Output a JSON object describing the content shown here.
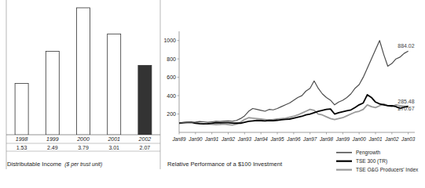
{
  "chart_data": [
    {
      "type": "bar",
      "title": "Distributable Income",
      "subtitle": "($ per trust unit)",
      "categories": [
        "1998",
        "1999",
        "2000",
        "2001",
        "2002"
      ],
      "values": [
        1.53,
        2.49,
        3.79,
        3.01,
        2.07
      ],
      "colors": [
        "#ffffff",
        "#ffffff",
        "#ffffff",
        "#ffffff",
        "#333333"
      ],
      "ylim": [
        0,
        4
      ],
      "data_labels": true,
      "tick_labels": "x",
      "grid": false
    },
    {
      "type": "line",
      "title": "Relative Performance of a $100 Investment",
      "x": [
        1989,
        1989.25,
        1989.5,
        1989.75,
        1990,
        1990.25,
        1990.5,
        1990.75,
        1991,
        1991.25,
        1991.5,
        1991.75,
        1992,
        1992.25,
        1992.5,
        1992.75,
        1993,
        1993.25,
        1993.5,
        1993.75,
        1994,
        1994.25,
        1994.5,
        1994.75,
        1995,
        1995.25,
        1995.5,
        1995.75,
        1996,
        1996.25,
        1996.5,
        1996.75,
        1997,
        1997.25,
        1997.5,
        1997.75,
        1998,
        1998.25,
        1998.5,
        1998.75,
        1999,
        1999.25,
        1999.5,
        1999.75,
        2000,
        2000.25,
        2000.5,
        2000.75,
        2001,
        2001.25,
        2001.5,
        2001.75,
        2002,
        2002.25,
        2002.5,
        2002.75,
        2003
      ],
      "series": [
        {
          "name": "Pengrowth",
          "color": "#4d4d4d",
          "line_style": "solid",
          "values": [
            100,
            105,
            110,
            108,
            112,
            118,
            115,
            110,
            115,
            120,
            118,
            122,
            125,
            120,
            130,
            150,
            180,
            230,
            260,
            250,
            240,
            230,
            250,
            245,
            260,
            280,
            300,
            320,
            350,
            380,
            400,
            450,
            480,
            560,
            480,
            420,
            380,
            350,
            300,
            330,
            350,
            380,
            420,
            480,
            520,
            600,
            700,
            800,
            900,
            1000,
            850,
            720,
            750,
            800,
            820,
            860,
            884.02
          ]
        },
        {
          "name": "TSE 300 (TR)",
          "color": "#000000",
          "line_style": "solid",
          "values": [
            100,
            105,
            108,
            110,
            100,
            95,
            92,
            95,
            100,
            105,
            103,
            105,
            105,
            102,
            100,
            100,
            110,
            120,
            125,
            130,
            128,
            125,
            130,
            128,
            132,
            138,
            142,
            145,
            155,
            165,
            175,
            190,
            200,
            215,
            230,
            240,
            250,
            255,
            200,
            215,
            225,
            235,
            245,
            270,
            300,
            320,
            410,
            380,
            330,
            310,
            300,
            290,
            290,
            280,
            260,
            275,
            285.48
          ]
        },
        {
          "name": "TSE O&G Producers' Index",
          "color": "#9a9a9a",
          "line_style": "solid",
          "values": [
            100,
            105,
            110,
            108,
            105,
            100,
            95,
            90,
            88,
            85,
            87,
            90,
            85,
            80,
            90,
            110,
            140,
            160,
            155,
            150,
            145,
            140,
            135,
            140,
            145,
            150,
            155,
            165,
            175,
            190,
            210,
            230,
            250,
            240,
            200,
            190,
            170,
            150,
            140,
            150,
            160,
            180,
            200,
            220,
            230,
            250,
            300,
            280,
            270,
            290,
            310,
            290,
            280,
            300,
            290,
            285,
            270.67
          ]
        }
      ],
      "xlim": [
        1989,
        2003.4
      ],
      "xticks": [
        {
          "value": 1989,
          "label": "Jan89"
        },
        {
          "value": 1990,
          "label": "Jan90"
        },
        {
          "value": 1991,
          "label": "Jan91"
        },
        {
          "value": 1992,
          "label": "Jan92"
        },
        {
          "value": 1993,
          "label": "Jan93"
        },
        {
          "value": 1994,
          "label": "Jan94"
        },
        {
          "value": 1995,
          "label": "Jan95"
        },
        {
          "value": 1996,
          "label": "Jan96"
        },
        {
          "value": 1997,
          "label": "Jan97"
        },
        {
          "value": 1998,
          "label": "Jan98"
        },
        {
          "value": 1999,
          "label": "Jan99"
        },
        {
          "value": 2000,
          "label": "Jan00"
        },
        {
          "value": 2001,
          "label": "Jan01"
        },
        {
          "value": 2002,
          "label": "Jan02"
        },
        {
          "value": 2003,
          "label": "Jan03"
        }
      ],
      "ylim": [
        0,
        1100
      ],
      "yticks": [
        200,
        400,
        600,
        800,
        1000
      ],
      "annotations": [
        {
          "text": "884.02",
          "x": 2003,
          "y": 884.02
        },
        {
          "text": "285.48",
          "x": 2003,
          "y": 285.48
        },
        {
          "text": "270.67",
          "x": 2003,
          "y": 270.67
        }
      ],
      "legend": "bottom",
      "grid": false
    }
  ]
}
